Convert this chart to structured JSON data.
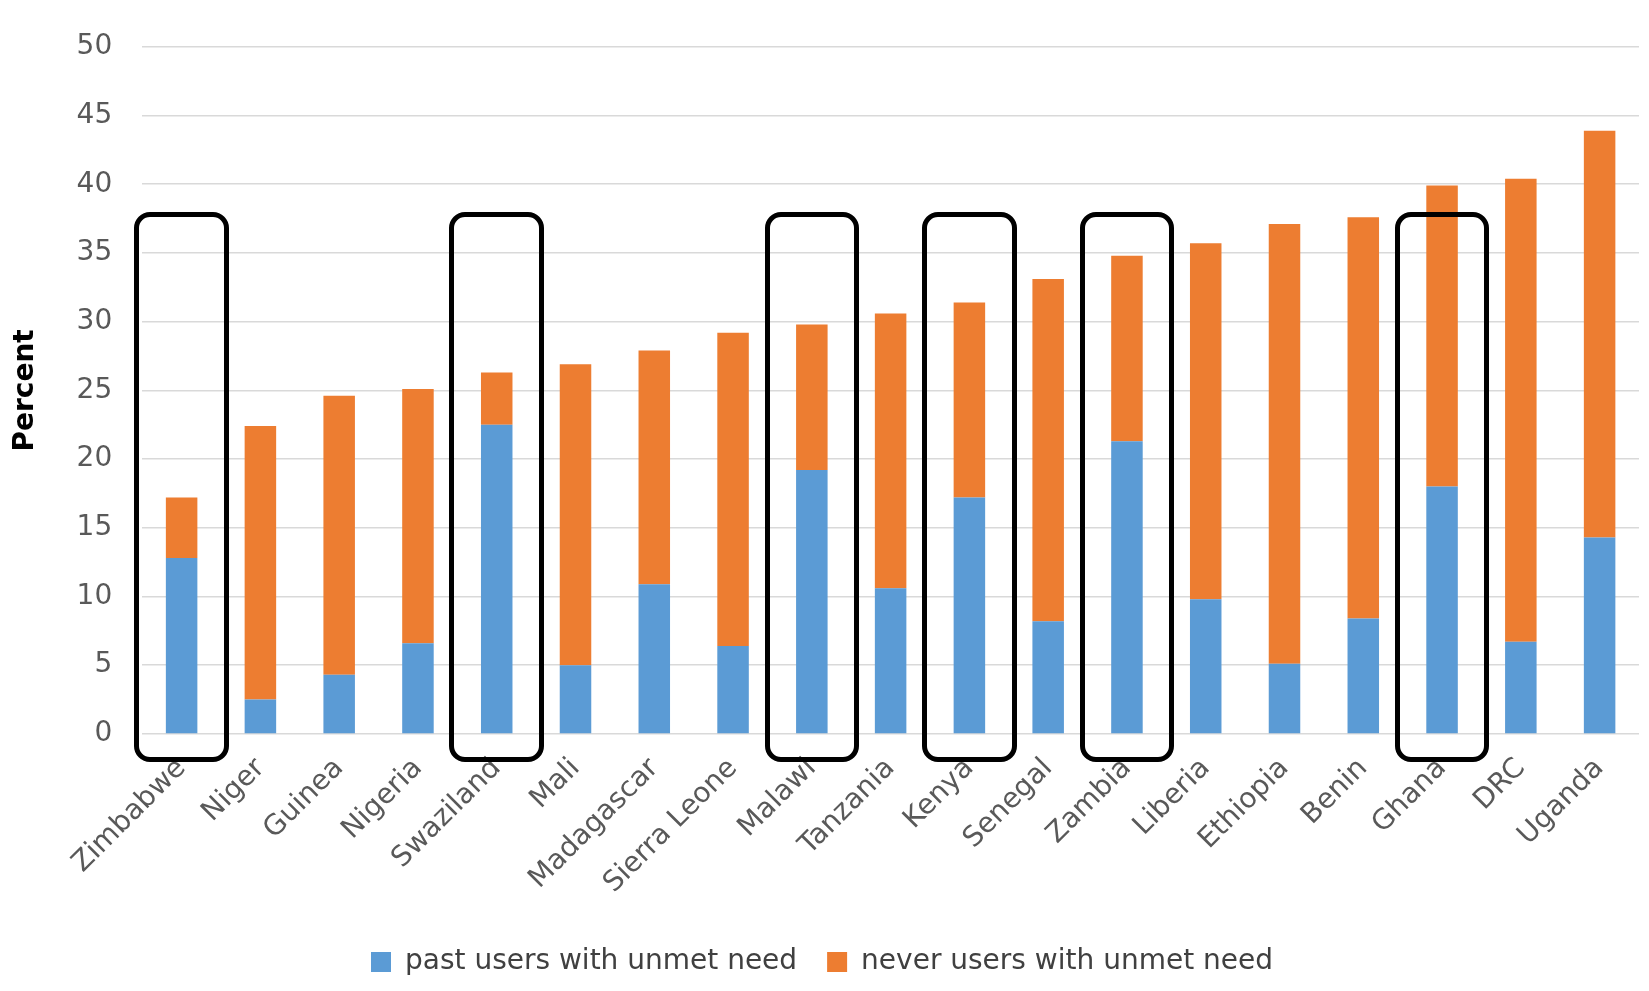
{
  "chart_data": {
    "type": "bar",
    "stacked": true,
    "ylabel": "Percent",
    "categories": [
      "Zimbabwe",
      "Niger",
      "Guinea",
      "Nigeria",
      "Swaziland",
      "Mali",
      "Madagascar",
      "Sierra Leone",
      "Malawi",
      "Tanzania",
      "Kenya",
      "Senegal",
      "Zambia",
      "Liberia",
      "Ethiopia",
      "Benin",
      "Ghana",
      "DRC",
      "Uganda"
    ],
    "series": [
      {
        "name": "past users with unmet need",
        "color": "#5b9bd5",
        "values": [
          12.8,
          2.5,
          4.3,
          6.6,
          22.5,
          5.0,
          10.9,
          6.4,
          19.2,
          10.6,
          17.2,
          8.2,
          21.3,
          9.8,
          5.1,
          8.4,
          18.0,
          6.7,
          14.3
        ]
      },
      {
        "name": "never users with unmet need",
        "color": "#ed7d31",
        "values": [
          4.4,
          19.9,
          20.3,
          18.5,
          3.8,
          21.9,
          17.0,
          22.8,
          10.6,
          20.0,
          14.2,
          24.9,
          13.5,
          25.9,
          32.0,
          29.2,
          21.9,
          33.7,
          29.6
        ]
      }
    ],
    "ylim": [
      0,
      50
    ],
    "yticks": [
      0,
      5,
      10,
      15,
      20,
      25,
      30,
      35,
      40,
      45,
      50
    ],
    "grid": "y",
    "legend": "bottom"
  }
}
